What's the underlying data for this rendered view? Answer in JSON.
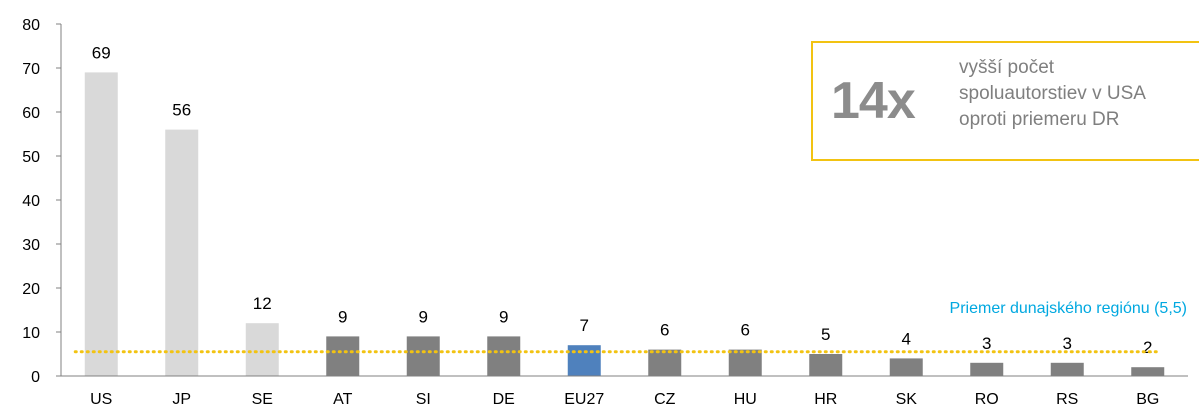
{
  "chart_data": {
    "type": "bar",
    "categories": [
      "US",
      "JP",
      "SE",
      "AT",
      "SI",
      "DE",
      "EU27",
      "CZ",
      "HU",
      "HR",
      "SK",
      "RO",
      "RS",
      "BG"
    ],
    "values": [
      69,
      56,
      12,
      9,
      9,
      9,
      7,
      6,
      6,
      5,
      4,
      3,
      3,
      2
    ],
    "data_labels": [
      "69",
      "56",
      "12",
      "9",
      "9",
      "9",
      "7",
      "6",
      "6",
      "5",
      "4",
      "3",
      "3",
      "2"
    ],
    "bar_colors": [
      "#d9d9d9",
      "#d9d9d9",
      "#d9d9d9",
      "#808080",
      "#808080",
      "#808080",
      "#4f81bd",
      "#808080",
      "#808080",
      "#808080",
      "#808080",
      "#808080",
      "#808080",
      "#808080"
    ],
    "ylim": [
      0,
      80
    ],
    "yticks": [
      0,
      10,
      20,
      30,
      40,
      50,
      60,
      70,
      80
    ],
    "grid": false,
    "reference_line": {
      "value": 5.5,
      "label": "Priemer dunajského regiónu (5,5)",
      "color": "#f2c312",
      "style": "dotted"
    }
  },
  "callout": {
    "big_text": "14x",
    "lines": [
      "vyšší počet",
      "spoluautorstiev v USA",
      "oproti priemeru DR"
    ],
    "border_color": "#f2c312"
  }
}
